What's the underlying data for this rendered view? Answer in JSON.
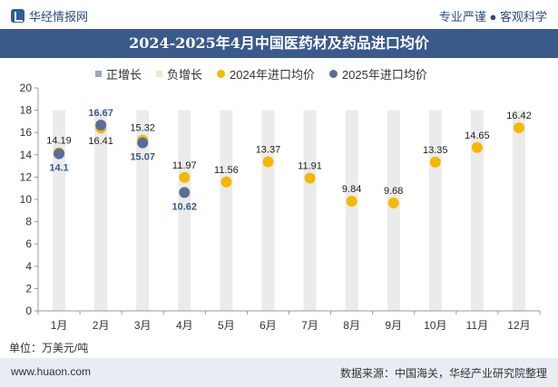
{
  "header": {
    "brand": "华经情报网",
    "slogan": "专业严谨 ● 客观科学"
  },
  "legend": {
    "items": [
      {
        "label": "正增长",
        "color": "#9aa6b8"
      },
      {
        "label": "负增长",
        "color": "#f5e6c8"
      },
      {
        "label": "2024年进口均价",
        "color": "#f5b800"
      },
      {
        "label": "2025年进口均价",
        "color": "#5a6e95"
      }
    ]
  },
  "chart_data": {
    "type": "scatter",
    "title": "2024-2025年4月中国医药材及药品进口均价",
    "categories": [
      "1月",
      "2月",
      "3月",
      "4月",
      "5月",
      "6月",
      "7月",
      "8月",
      "9月",
      "10月",
      "11月",
      "12月"
    ],
    "ylim": [
      0,
      20
    ],
    "yticks": [
      0,
      2,
      4,
      6,
      8,
      10,
      12,
      14,
      16,
      18,
      20
    ],
    "bar_value": 18,
    "series": [
      {
        "name": "2024年进口均价",
        "color": "#f5b800",
        "values": [
          14.19,
          16.41,
          15.32,
          11.97,
          11.56,
          13.37,
          11.91,
          9.84,
          9.68,
          13.35,
          14.65,
          16.42
        ]
      },
      {
        "name": "2025年进口均价",
        "color": "#5a6e95",
        "values": [
          14.1,
          16.67,
          15.07,
          10.62
        ]
      }
    ],
    "labels_2024": [
      "14.19",
      "16.41",
      "15.32",
      "11.97",
      "11.56",
      "13.37",
      "11.91",
      "9.84",
      "9.68",
      "13.35",
      "14.65",
      "16.42"
    ],
    "labels_2025": [
      "14.1",
      "16.67",
      "15.07",
      "10.62"
    ],
    "unit": "单位：万美元/吨"
  },
  "footer": {
    "site": "www.huaon.com",
    "source": "数据来源：中国海关，华经产业研究院整理"
  }
}
